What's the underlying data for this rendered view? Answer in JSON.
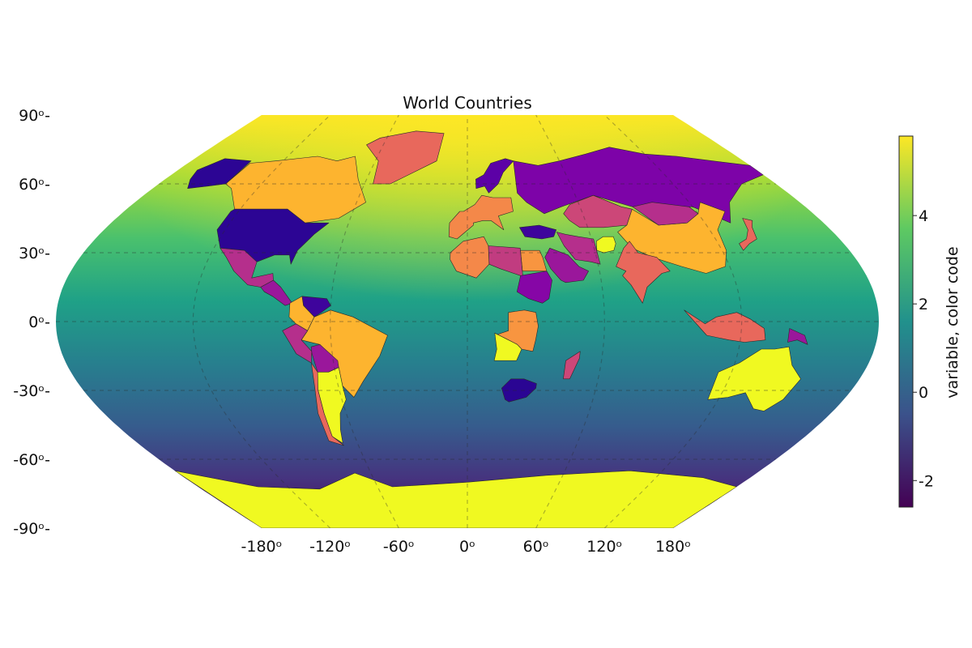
{
  "chart_data": {
    "type": "heatmap",
    "title": "World Countries",
    "projection": "winkel-tripel",
    "x_ticks": [
      "-180ᵒ",
      "-120ᵒ",
      "-60ᵒ",
      "0ᵒ",
      "60ᵒ",
      "120ᵒ",
      "180ᵒ"
    ],
    "x_tick_values": [
      -180,
      -120,
      -60,
      0,
      60,
      120,
      180
    ],
    "y_ticks": [
      "90ᵒ",
      "60ᵒ",
      "30ᵒ",
      "0ᵒ",
      "-30ᵒ",
      "-60ᵒ",
      "-90ᵒ"
    ],
    "y_tick_values": [
      90,
      60,
      30,
      0,
      -30,
      -60,
      -90
    ],
    "grid": true,
    "colorbar": {
      "label": "variable, color code",
      "ticks": [
        "4",
        "2",
        "0",
        "-2"
      ],
      "tick_values": [
        4,
        2,
        0,
        -2
      ],
      "range": [
        -2.6,
        5.8
      ],
      "colormap": "viridis",
      "placement": "right"
    },
    "background_field": "smooth value field, high near the north pole (~5.5) decreasing toward the south (~-2.5)",
    "country_colormap": "plasma",
    "countries": [
      {
        "name": "Canada",
        "value": 5.0,
        "color": "#fdb42f"
      },
      {
        "name": "United States",
        "value": -2.0,
        "color": "#2c0594"
      },
      {
        "name": "Alaska (US)",
        "value": -2.0,
        "color": "#2c0594"
      },
      {
        "name": "Greenland",
        "value": 2.5,
        "color": "#e8685c"
      },
      {
        "name": "Mexico",
        "value": 0.5,
        "color": "#b52f8c"
      },
      {
        "name": "Central America",
        "value": 0.0,
        "color": "#9a179b"
      },
      {
        "name": "Venezuela",
        "value": -2.2,
        "color": "#3e049c"
      },
      {
        "name": "Colombia",
        "value": 4.8,
        "color": "#fdb42f"
      },
      {
        "name": "Brazil",
        "value": 4.8,
        "color": "#fdb42f"
      },
      {
        "name": "Peru",
        "value": 0.5,
        "color": "#b52f8c"
      },
      {
        "name": "Bolivia",
        "value": 0.0,
        "color": "#9a179b"
      },
      {
        "name": "Argentina",
        "value": 5.8,
        "color": "#f0f921"
      },
      {
        "name": "Chile",
        "value": 2.5,
        "color": "#e8685c"
      },
      {
        "name": "Russia",
        "value": -1.5,
        "color": "#7d03a8"
      },
      {
        "name": "China",
        "value": 5.0,
        "color": "#fdb42f"
      },
      {
        "name": "India",
        "value": 2.5,
        "color": "#e8685c"
      },
      {
        "name": "Kazakhstan",
        "value": 1.5,
        "color": "#cc4778"
      },
      {
        "name": "Mongolia",
        "value": 0.5,
        "color": "#b52f8c"
      },
      {
        "name": "Afghanistan",
        "value": 5.8,
        "color": "#f0f921"
      },
      {
        "name": "Iran",
        "value": 0.5,
        "color": "#b52f8c"
      },
      {
        "name": "Saudi Arabia",
        "value": 0.0,
        "color": "#9a179b"
      },
      {
        "name": "Egypt",
        "value": 4.0,
        "color": "#f89540"
      },
      {
        "name": "Libya",
        "value": 1.0,
        "color": "#c13c80"
      },
      {
        "name": "Algeria",
        "value": 3.5,
        "color": "#f48849"
      },
      {
        "name": "Sudan",
        "value": -0.5,
        "color": "#8606a6"
      },
      {
        "name": "DR Congo",
        "value": 4.0,
        "color": "#f89540"
      },
      {
        "name": "Angola",
        "value": 5.8,
        "color": "#f0f921"
      },
      {
        "name": "South Africa",
        "value": -2.3,
        "color": "#2a0593"
      },
      {
        "name": "Madagascar",
        "value": 1.5,
        "color": "#cc4778"
      },
      {
        "name": "Australia",
        "value": 5.8,
        "color": "#f0f921"
      },
      {
        "name": "Indonesia",
        "value": 2.5,
        "color": "#e8685c"
      },
      {
        "name": "Papua New Guinea",
        "value": 0.0,
        "color": "#9a179b"
      },
      {
        "name": "Japan",
        "value": 2.5,
        "color": "#e8685c"
      },
      {
        "name": "Antarctica",
        "value": 5.8,
        "color": "#f0f921"
      },
      {
        "name": "Western Europe",
        "value": 3.5,
        "color": "#f48849"
      },
      {
        "name": "Scandinavia",
        "value": -1.0,
        "color": "#5c01a6"
      },
      {
        "name": "Turkey",
        "value": -1.8,
        "color": "#3e049c"
      }
    ]
  }
}
